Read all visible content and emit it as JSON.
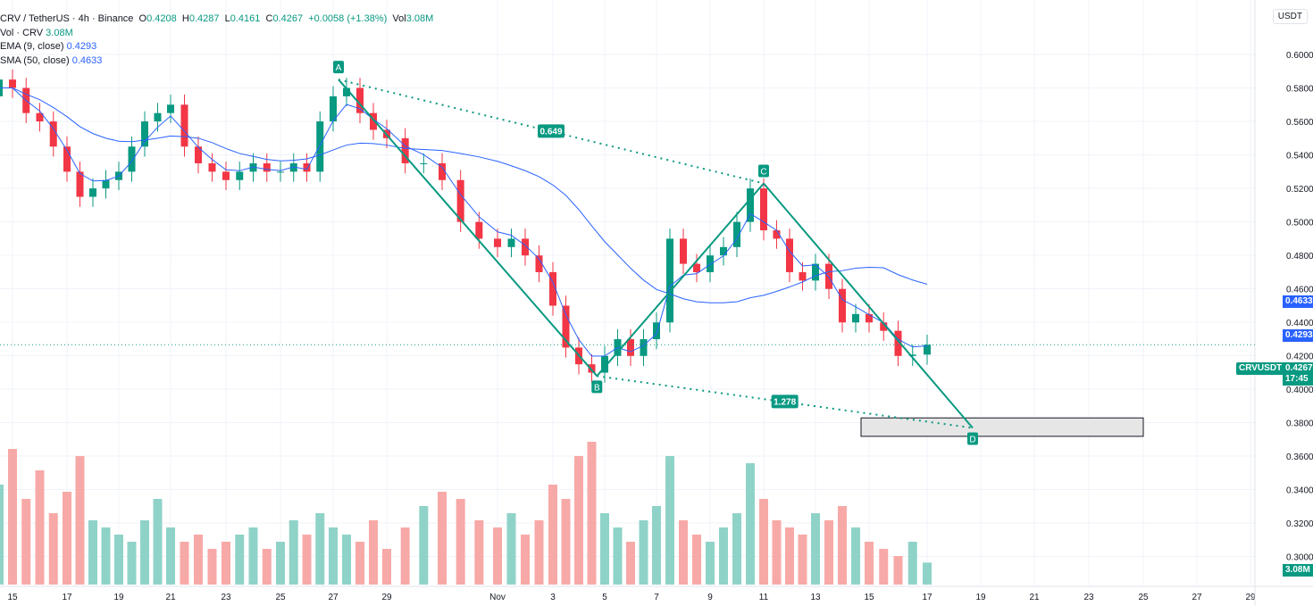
{
  "chart_data": {
    "type": "candlestick",
    "symbol": "CRV / TetherUS",
    "interval": "4h",
    "exchange": "Binance",
    "ohlc": {
      "open": "0.4208",
      "high": "0.4287",
      "low": "0.4161",
      "close": "0.4267",
      "change": "+0.0058 (+1.38%)",
      "vol": "3.08M"
    },
    "indicators": [
      {
        "label": "Vol · CRV",
        "value": "3.08M"
      },
      {
        "label": "EMA (9, close)",
        "value": "0.4293",
        "color": "#2962ff"
      },
      {
        "label": "SMA (50, close)",
        "value": "0.4633",
        "color": "#2962ff"
      }
    ],
    "currency": "USDT",
    "ylim": [
      0.29,
      0.615
    ],
    "y_ticks": [
      "0.6000",
      "0.5800",
      "0.5600",
      "0.5400",
      "0.5200",
      "0.5000",
      "0.4800",
      "0.4600",
      "0.4400",
      "0.4200",
      "0.4000",
      "0.3800",
      "0.3600",
      "0.3400",
      "0.3200",
      "0.3000"
    ],
    "x_ticks": [
      {
        "label": "15",
        "day": 15
      },
      {
        "label": "17",
        "day": 17
      },
      {
        "label": "19",
        "day": 19
      },
      {
        "label": "21",
        "day": 21
      },
      {
        "label": "23",
        "day": 23
      },
      {
        "label": "25",
        "day": 25
      },
      {
        "label": "27",
        "day": 27
      },
      {
        "label": "29",
        "day": 29
      },
      {
        "label": "Nov",
        "day": 32
      },
      {
        "label": "3",
        "day": 34
      },
      {
        "label": "5",
        "day": 36
      },
      {
        "label": "7",
        "day": 38
      },
      {
        "label": "9",
        "day": 40
      },
      {
        "label": "11",
        "day": 42
      },
      {
        "label": "13",
        "day": 44
      },
      {
        "label": "15",
        "day": 46
      },
      {
        "label": "17",
        "day": 48
      },
      {
        "label": "19",
        "day": 50
      },
      {
        "label": "21",
        "day": 52
      },
      {
        "label": "23",
        "day": 54
      },
      {
        "label": "25",
        "day": 56
      },
      {
        "label": "27",
        "day": 58
      },
      {
        "label": "29",
        "day": 60
      }
    ],
    "candle_start_day": 14,
    "candle_step_days": 0.5,
    "closes": [
      0.575,
      0.585,
      0.58,
      0.565,
      0.56,
      0.545,
      0.53,
      0.515,
      0.52,
      0.525,
      0.53,
      0.545,
      0.56,
      0.565,
      0.57,
      0.545,
      0.535,
      0.53,
      0.525,
      0.53,
      0.535,
      0.53,
      0.53,
      0.535,
      0.53,
      0.56,
      0.575,
      0.58,
      0.565,
      0.555,
      0.55,
      0.535,
      0.535,
      0.525,
      0.5,
      0.49,
      0.485,
      0.49,
      0.48,
      0.47,
      0.45,
      0.425,
      0.415,
      0.41,
      0.42,
      0.43,
      0.42,
      0.43,
      0.44,
      0.49,
      0.475,
      0.47,
      0.48,
      0.485,
      0.5,
      0.52,
      0.495,
      0.49,
      0.47,
      0.465,
      0.475,
      0.46,
      0.44,
      0.445,
      0.44,
      0.435,
      0.42,
      0.4208,
      0.4267
    ],
    "volumes_m": [
      17,
      14,
      19,
      12,
      16,
      10,
      13,
      18,
      9,
      8,
      7,
      6,
      9,
      12,
      8,
      6,
      7,
      5,
      6,
      7,
      8,
      5,
      6,
      9,
      7,
      10,
      8,
      7,
      6,
      9,
      5,
      8,
      11,
      13,
      12,
      9,
      8,
      10,
      7,
      9,
      14,
      12,
      18,
      20,
      10,
      8,
      6,
      9,
      11,
      18,
      9,
      7,
      6,
      8,
      10,
      17,
      12,
      9,
      8,
      7,
      10,
      9,
      11,
      8,
      6,
      5,
      4,
      6,
      3.08
    ],
    "pattern": {
      "points": [
        {
          "label": "A",
          "day": 27.2,
          "price": 0.585
        },
        {
          "label": "B",
          "day": 35.7,
          "price": 0.408
        },
        {
          "label": "C",
          "day": 42,
          "price": 0.523
        },
        {
          "label": "D",
          "day": 49.7,
          "price": 0.377
        }
      ],
      "ratios": [
        "0.649",
        "1.278"
      ],
      "target_zone": {
        "from_day": 45.7,
        "to_day": 56,
        "low": 0.372,
        "high": 0.383
      }
    },
    "price_tags": [
      {
        "text": "0.4633",
        "color": "#2962ff",
        "price": 0.4633
      },
      {
        "text": "0.4293",
        "color": "#2962ff",
        "price": 0.4293
      },
      {
        "text": "0.4267",
        "sub": "17:45",
        "color": "#089981",
        "price": 0.4267
      },
      {
        "text": "3.08M",
        "color": "#089981"
      }
    ],
    "symbol_tag": "CRVUSDT",
    "colors": {
      "up": "#089981",
      "down": "#f23645",
      "up_vol": "#8fd3c8",
      "down_vol": "#f7a9a7",
      "ma": "#2962ff",
      "pattern": "#089981"
    }
  }
}
